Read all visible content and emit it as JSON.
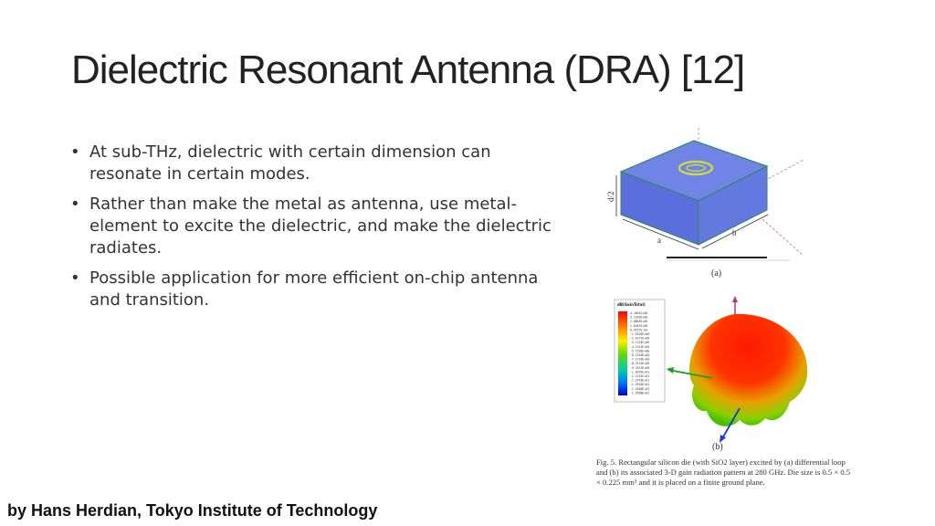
{
  "slide": {
    "title": "Dielectric Resonant Antenna (DRA) [12]",
    "bullets": [
      "At sub-THz, dielectric with certain dimension can resonate in certain modes.",
      "Rather than make the metal as antenna, use metal-element to excite the dielectric, and make the dielectric radiates.",
      "Possible application for more efficient on-chip antenna and transition."
    ],
    "bullet_symbol": "•",
    "footer": "by Hans Herdian, Tokyo Institute of Technology"
  },
  "figure": {
    "label_a": "(a)",
    "label_b": "(b)",
    "dim_labels": {
      "height": "d/2",
      "width": "a",
      "depth": "b"
    },
    "colorbar_header": "dB(GainTotal)",
    "colorbar_values": [
      "4.1661E+00",
      "3.1263E+00",
      "2.0865E+00",
      "1.0467E+00",
      "6.9557E-03",
      "-1.0329E+00",
      "-2.0727E+00",
      "-3.1125E+00",
      "-4.1522E+00",
      "-5.1920E+00",
      "-6.2318E+00",
      "-7.2716E+00",
      "-8.3114E+00",
      "-9.3512E+00",
      "-1.0391E+01",
      "-1.1431E+01",
      "-1.2470E+01",
      "-1.3510E+01",
      "-1.4550E+01",
      "-1.5590E+01"
    ],
    "colors": {
      "box_top": "#6a7ee0",
      "box_side": "#5a6fdc",
      "box_edge": "#2e8b57"
    },
    "caption": "Fig. 5.   Rectangular silicon die (with SiO2 layer) excited by (a) differential loop and (b) its associated 3-D gain radiation pattern at 280 GHz. Die size is 0.5 × 0.5 × 0.225 mm³ and it is placed on a finite ground plane."
  }
}
